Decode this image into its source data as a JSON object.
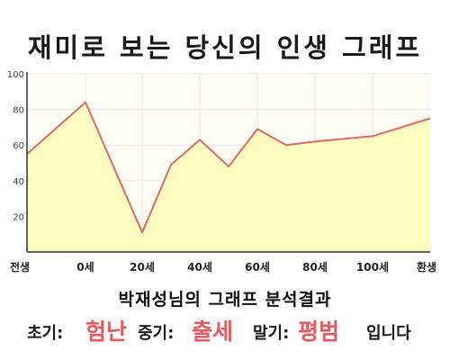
{
  "header": {
    "title": "재미로 보는 당신의 인생 그래프"
  },
  "colors": {
    "line": "#e06868",
    "fill": "#fdfcc0",
    "grid": "#e6e6e6",
    "axis": "#333333",
    "highlight": "#e8595f"
  },
  "chart_data": {
    "type": "area",
    "title": "재미로 보는 당신의 인생 그래프",
    "xlabel": "",
    "ylabel": "",
    "x_ticks": [
      "전생",
      "0세",
      "20세",
      "40세",
      "60세",
      "80세",
      "100세",
      "환생"
    ],
    "y_ticks": [
      "20",
      "40",
      "60",
      "80",
      "100"
    ],
    "ylim": [
      0,
      100
    ],
    "grid": true,
    "points": [
      {
        "x": "전생",
        "y": 55
      },
      {
        "x": "0세",
        "y": 84
      },
      {
        "x": "20세",
        "y": 11
      },
      {
        "x": "30세",
        "y": 49
      },
      {
        "x": "40세",
        "y": 63
      },
      {
        "x": "50세",
        "y": 48
      },
      {
        "x": "60세",
        "y": 69
      },
      {
        "x": "70세",
        "y": 60
      },
      {
        "x": "80세",
        "y": 62
      },
      {
        "x": "100세",
        "y": 65
      },
      {
        "x": "환생",
        "y": 75
      }
    ]
  },
  "analysis": {
    "title": "박재성님의 그래프 분석결과",
    "early_label": "초기:",
    "early_value": "험난",
    "middle_label": "중기:",
    "middle_value": "출세",
    "late_label": "말기:",
    "late_value": "평범",
    "ending": "입니다"
  }
}
